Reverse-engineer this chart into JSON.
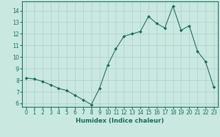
{
  "xlabel": "Humidex (Indice chaleur)",
  "x": [
    0,
    1,
    2,
    3,
    4,
    5,
    6,
    7,
    8,
    9,
    10,
    11,
    12,
    13,
    14,
    15,
    16,
    17,
    18,
    19,
    20,
    21,
    22,
    23
  ],
  "y": [
    8.2,
    8.1,
    7.9,
    7.6,
    7.3,
    7.1,
    6.7,
    6.3,
    5.9,
    7.3,
    9.3,
    10.7,
    11.8,
    12.0,
    12.2,
    13.5,
    12.9,
    12.5,
    14.4,
    12.3,
    12.7,
    10.5,
    9.6,
    7.4
  ],
  "line_color": "#1a6b5a",
  "marker": "D",
  "marker_size": 2,
  "bg_color": "#c8e8e0",
  "grid_color": "#b0cccc",
  "ylim": [
    5.7,
    14.8
  ],
  "xlim": [
    -0.5,
    23.5
  ],
  "yticks": [
    6,
    7,
    8,
    9,
    10,
    11,
    12,
    13,
    14
  ],
  "xticks": [
    0,
    1,
    2,
    3,
    4,
    5,
    6,
    7,
    8,
    9,
    10,
    11,
    12,
    13,
    14,
    15,
    16,
    17,
    18,
    19,
    20,
    21,
    22,
    23
  ],
  "tick_fontsize": 5.5,
  "xlabel_fontsize": 6.5
}
